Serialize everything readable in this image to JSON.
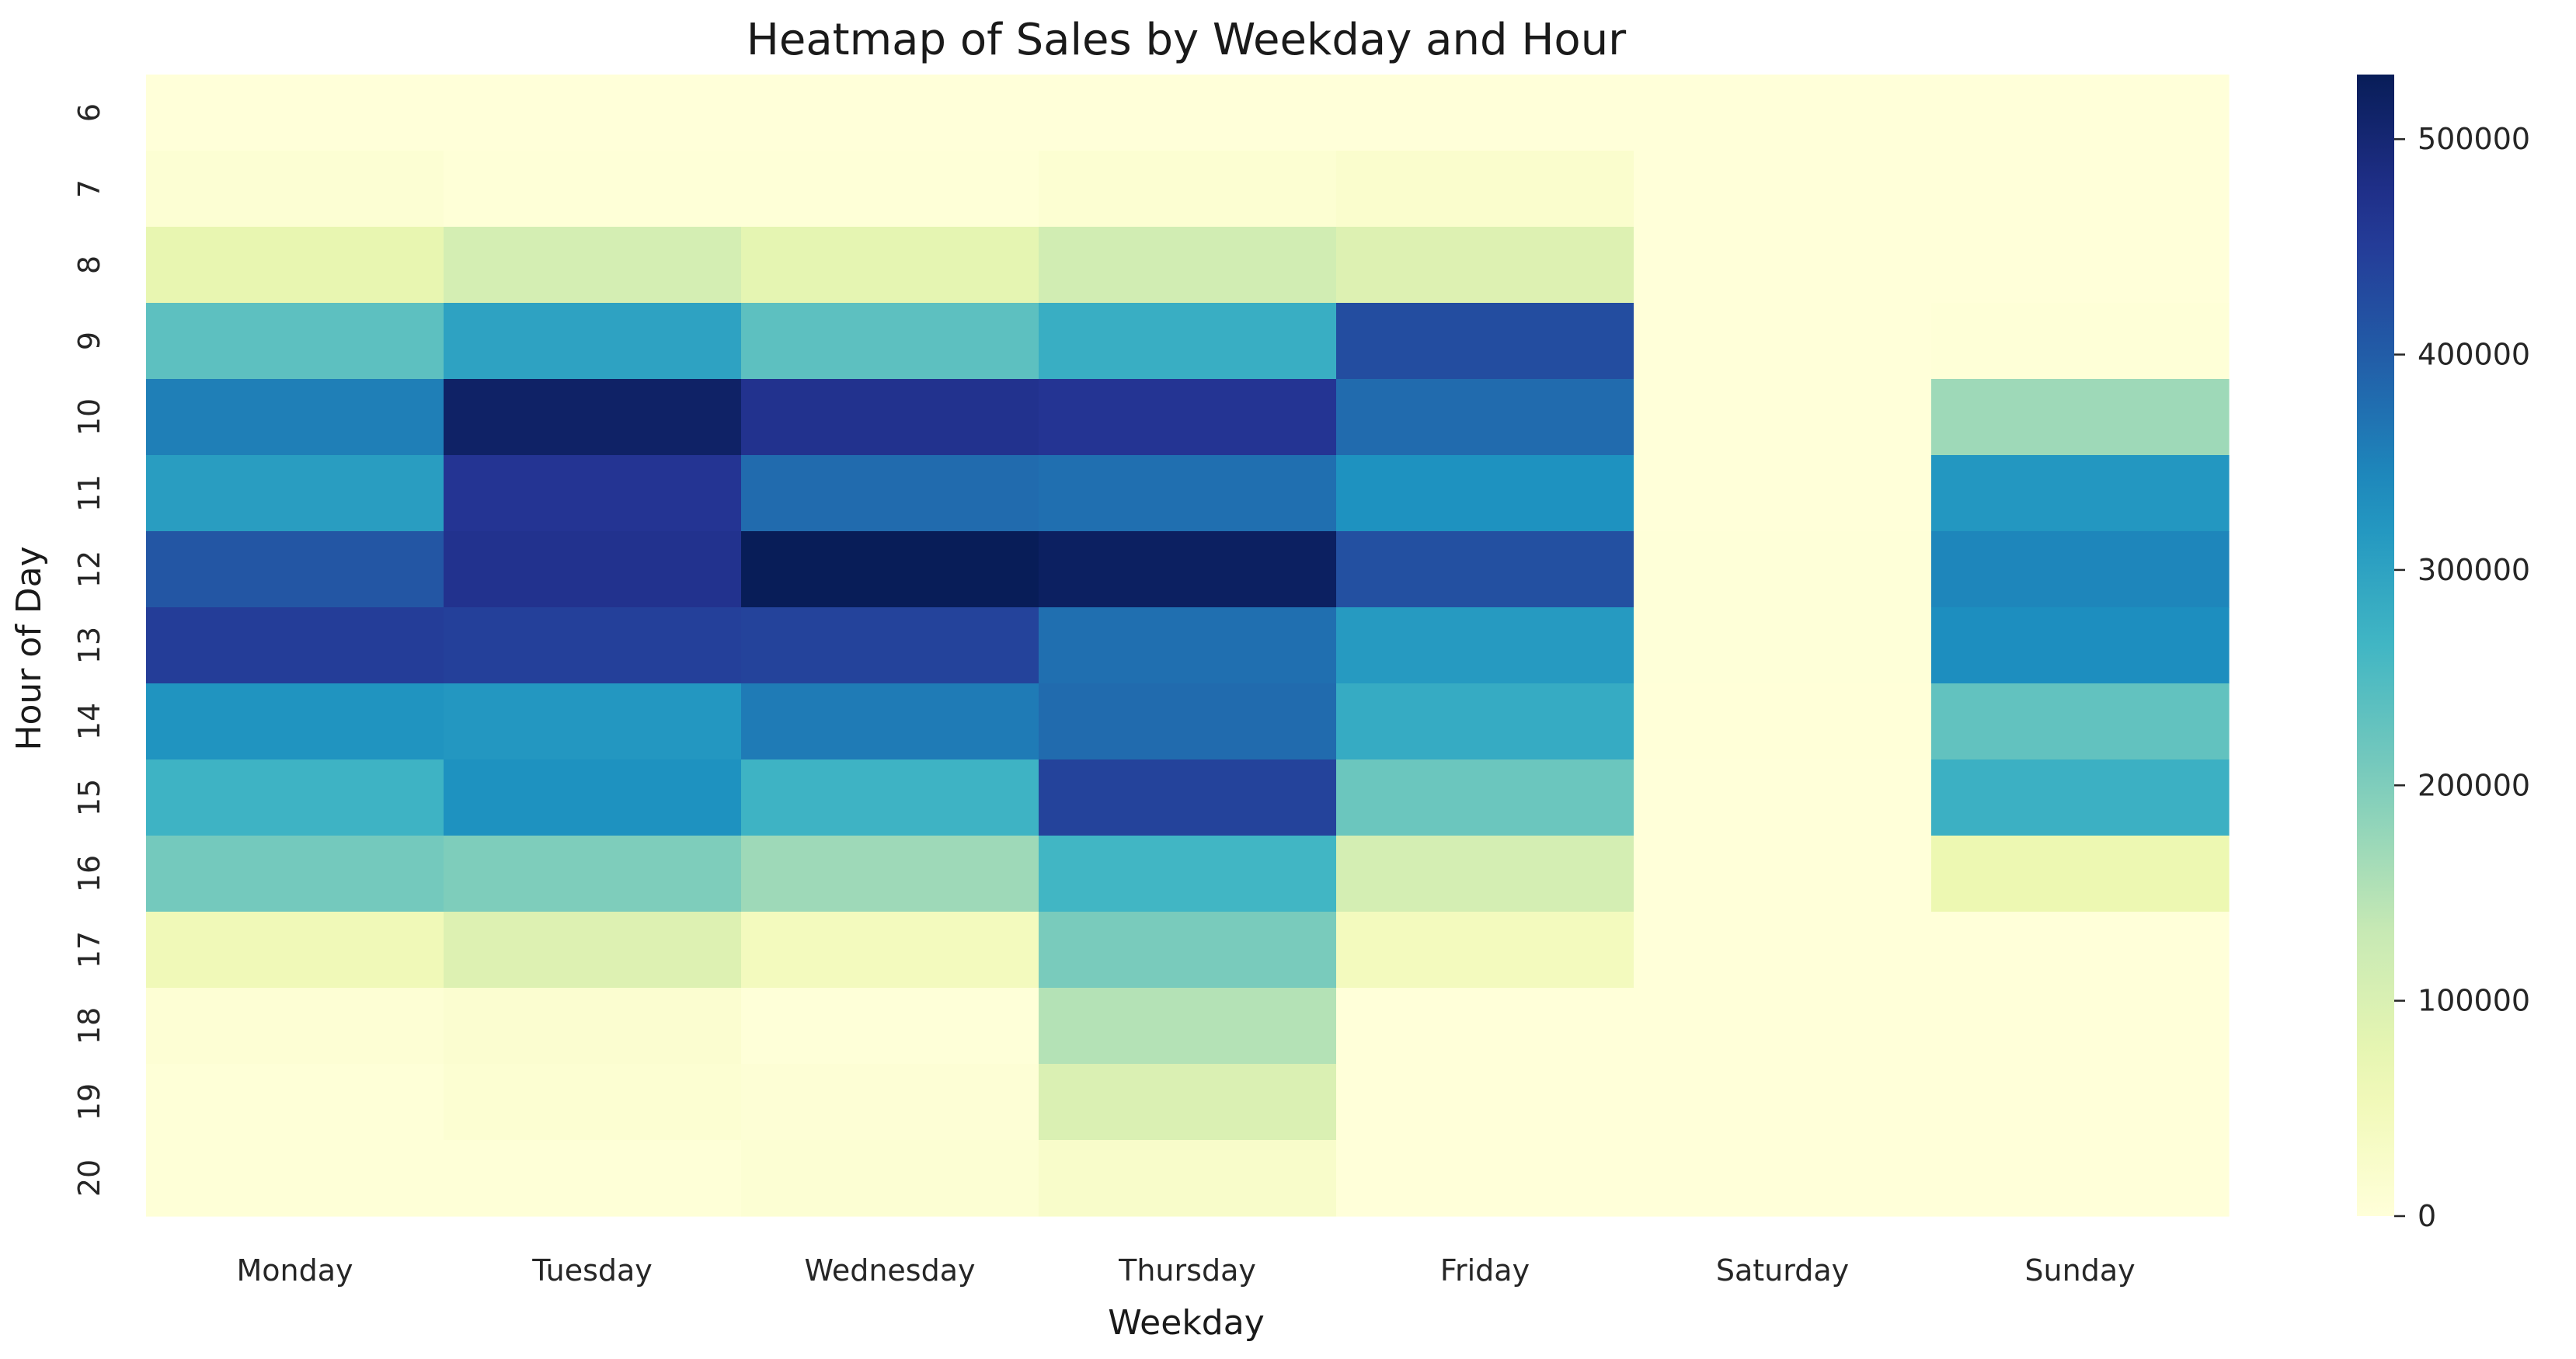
{
  "chart_data": {
    "type": "heatmap",
    "title": "Heatmap of Sales by Weekday and Hour",
    "xlabel": "Weekday",
    "ylabel": "Hour of Day",
    "x_categories": [
      "Monday",
      "Tuesday",
      "Wednesday",
      "Thursday",
      "Friday",
      "Saturday",
      "Sunday"
    ],
    "y_categories": [
      "6",
      "7",
      "8",
      "9",
      "10",
      "11",
      "12",
      "13",
      "14",
      "15",
      "16",
      "17",
      "18",
      "19",
      "20"
    ],
    "values": [
      [
        0,
        0,
        0,
        0,
        0,
        0,
        0
      ],
      [
        10000,
        4000,
        3000,
        12000,
        20000,
        0,
        0
      ],
      [
        75000,
        110000,
        80000,
        115000,
        95000,
        0,
        0
      ],
      [
        235000,
        300000,
        235000,
        280000,
        425000,
        0,
        3000
      ],
      [
        355000,
        515000,
        470000,
        465000,
        380000,
        0,
        170000
      ],
      [
        310000,
        465000,
        380000,
        375000,
        330000,
        0,
        320000
      ],
      [
        410000,
        470000,
        530000,
        520000,
        420000,
        2000,
        345000
      ],
      [
        450000,
        445000,
        440000,
        375000,
        315000,
        2000,
        335000
      ],
      [
        325000,
        320000,
        360000,
        380000,
        285000,
        1000,
        230000
      ],
      [
        270000,
        330000,
        270000,
        440000,
        220000,
        0,
        275000
      ],
      [
        210000,
        200000,
        170000,
        265000,
        110000,
        0,
        65000
      ],
      [
        55000,
        95000,
        45000,
        205000,
        45000,
        0,
        0
      ],
      [
        8000,
        15000,
        2000,
        150000,
        0,
        0,
        0
      ],
      [
        4000,
        12000,
        6000,
        100000,
        0,
        0,
        0
      ],
      [
        3000,
        3000,
        10000,
        25000,
        0,
        0,
        0
      ]
    ],
    "colorbar": {
      "min": 0,
      "max": 530000,
      "ticks": [
        0,
        100000,
        200000,
        300000,
        400000,
        500000
      ],
      "colormap": "YlGnBu"
    },
    "grid": false,
    "legend": "colorbar-right"
  }
}
